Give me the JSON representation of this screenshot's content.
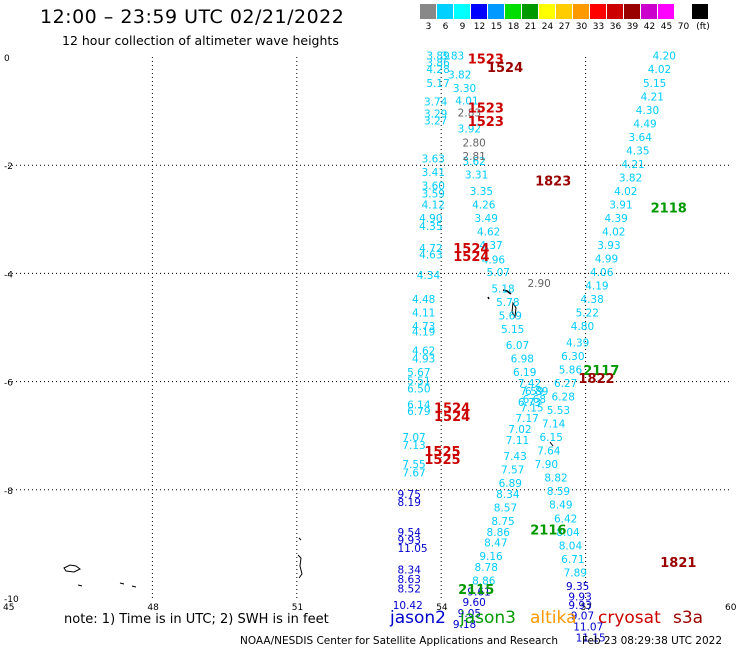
{
  "header": {
    "title": "12:00 – 23:59 UTC 02/21/2022",
    "subtitle": "12 hour collection of altimeter wave heights"
  },
  "legend": {
    "colors": [
      "#888888",
      "#00d0ff",
      "#00ffff",
      "#0000ff",
      "#0099ff",
      "#00dd00",
      "#009900",
      "#ffff00",
      "#ffcc00",
      "#ff9900",
      "#ff0000",
      "#cc0000",
      "#990000",
      "#cc00cc",
      "#ff00ff",
      "#ffffff",
      "#000000"
    ],
    "labels": [
      "3",
      "6",
      "9",
      "12",
      "15",
      "18",
      "21",
      "24",
      "27",
      "30",
      "33",
      "36",
      "39",
      "42",
      "45",
      "70",
      "(ft)"
    ]
  },
  "axes": {
    "y_ticks": [
      "0",
      "-2",
      "-4",
      "-6",
      "-8",
      "-10"
    ],
    "x_ticks": [
      "45",
      "48",
      "51",
      "54",
      "57",
      "60"
    ]
  },
  "footer": {
    "note": "note:  1) Time is in UTC;  2) SWH is in feet",
    "satellites": [
      {
        "name": "jason2",
        "color": "#0000cc"
      },
      {
        "name": "jason3",
        "color": "#009900"
      },
      {
        "name": "altika",
        "color": "#ff9900"
      },
      {
        "name": "cryosat",
        "color": "#cc0000"
      },
      {
        "name": "s3a",
        "color": "#990000"
      }
    ],
    "credit": "NOAA/NESDIS Center for Satellite Applications and Research",
    "timestamp": "Feb 23 08:29:38 UTC 2022"
  },
  "map_data": {
    "lon_range": [
      45,
      60
    ],
    "lat_range": [
      -10,
      0
    ],
    "time_labels": [
      {
        "text": "1523",
        "lon": 54.8,
        "lat": -0.05,
        "color": "#cc0000"
      },
      {
        "text": "1524",
        "lon": 55.2,
        "lat": -0.2,
        "color": "#990000"
      },
      {
        "text": "1523",
        "lon": 54.8,
        "lat": -0.95,
        "color": "#cc0000"
      },
      {
        "text": "1523",
        "lon": 54.8,
        "lat": -1.2,
        "color": "#cc0000"
      },
      {
        "text": "1823",
        "lon": 56.2,
        "lat": -2.3,
        "color": "#990000"
      },
      {
        "text": "2118",
        "lon": 58.6,
        "lat": -2.8,
        "color": "#009900"
      },
      {
        "text": "1524",
        "lon": 54.5,
        "lat": -3.55,
        "color": "#cc0000"
      },
      {
        "text": "1524",
        "lon": 54.5,
        "lat": -3.7,
        "color": "#cc0000"
      },
      {
        "text": "2117",
        "lon": 57.2,
        "lat": -5.8,
        "color": "#009900"
      },
      {
        "text": "1822",
        "lon": 57.1,
        "lat": -5.95,
        "color": "#990000"
      },
      {
        "text": "1524",
        "lon": 54.1,
        "lat": -6.5,
        "color": "#cc0000"
      },
      {
        "text": "1524",
        "lon": 54.1,
        "lat": -6.65,
        "color": "#cc0000"
      },
      {
        "text": "1525",
        "lon": 53.9,
        "lat": -7.3,
        "color": "#cc0000"
      },
      {
        "text": "1525",
        "lon": 53.9,
        "lat": -7.45,
        "color": "#cc0000"
      },
      {
        "text": "2116",
        "lon": 56.1,
        "lat": -8.75,
        "color": "#009900"
      },
      {
        "text": "1821",
        "lon": 58.8,
        "lat": -9.35,
        "color": "#990000"
      },
      {
        "text": "2115",
        "lon": 54.6,
        "lat": -9.85,
        "color": "#009900"
      }
    ],
    "tracks": [
      {
        "name": "track-a",
        "color": "#00ccff",
        "points": [
          {
            "lon": 53.9,
            "lat": -0.05,
            "v": "3.89"
          },
          {
            "lon": 53.9,
            "lat": -0.18,
            "v": "3.86"
          },
          {
            "lon": 53.9,
            "lat": -0.3,
            "v": "4.28"
          },
          {
            "lon": 53.9,
            "lat": -0.55,
            "v": "5.17"
          },
          {
            "lon": 53.85,
            "lat": -0.9,
            "v": "3.74"
          },
          {
            "lon": 53.85,
            "lat": -1.12,
            "v": "3.29"
          },
          {
            "lon": 53.85,
            "lat": -1.25,
            "v": "3.27"
          },
          {
            "lon": 53.8,
            "lat": -1.95,
            "v": "3.63"
          },
          {
            "lon": 53.8,
            "lat": -2.2,
            "v": "3.41"
          },
          {
            "lon": 53.8,
            "lat": -2.45,
            "v": "3.60"
          },
          {
            "lon": 53.8,
            "lat": -2.6,
            "v": "3.59"
          },
          {
            "lon": 53.8,
            "lat": -2.8,
            "v": "4.12"
          },
          {
            "lon": 53.75,
            "lat": -3.05,
            "v": "4.90"
          },
          {
            "lon": 53.75,
            "lat": -3.2,
            "v": "4.35"
          },
          {
            "lon": 53.75,
            "lat": -3.6,
            "v": "4.72"
          },
          {
            "lon": 53.75,
            "lat": -3.72,
            "v": "4.63"
          },
          {
            "lon": 53.7,
            "lat": -4.1,
            "v": "4.34"
          },
          {
            "lon": 53.6,
            "lat": -4.55,
            "v": "4.48"
          },
          {
            "lon": 53.6,
            "lat": -4.8,
            "v": "4.11"
          },
          {
            "lon": 53.6,
            "lat": -5.05,
            "v": "4.73"
          },
          {
            "lon": 53.6,
            "lat": -5.15,
            "v": "4.19"
          },
          {
            "lon": 53.6,
            "lat": -5.5,
            "v": "4.62"
          },
          {
            "lon": 53.6,
            "lat": -5.65,
            "v": "4.93"
          },
          {
            "lon": 53.5,
            "lat": -5.9,
            "v": "5.67"
          },
          {
            "lon": 53.5,
            "lat": -6.05,
            "v": "5.51"
          },
          {
            "lon": 53.5,
            "lat": -6.2,
            "v": "6.50"
          },
          {
            "lon": 53.5,
            "lat": -6.5,
            "v": "6.14"
          },
          {
            "lon": 53.5,
            "lat": -6.62,
            "v": "6.79"
          },
          {
            "lon": 53.4,
            "lat": -7.1,
            "v": "7.07"
          },
          {
            "lon": 53.4,
            "lat": -7.25,
            "v": "7.13"
          },
          {
            "lon": 53.4,
            "lat": -7.6,
            "v": "7.55"
          },
          {
            "lon": 53.4,
            "lat": -7.75,
            "v": "7.67"
          }
        ]
      },
      {
        "name": "track-a-south",
        "color": "#0000cc",
        "points": [
          {
            "lon": 53.3,
            "lat": -8.15,
            "v": "9.75"
          },
          {
            "lon": 53.3,
            "lat": -8.3,
            "v": "8.19"
          },
          {
            "lon": 53.3,
            "lat": -8.85,
            "v": "9.54"
          },
          {
            "lon": 53.3,
            "lat": -9.0,
            "v": "9.93"
          },
          {
            "lon": 53.3,
            "lat": -9.15,
            "v": "11.05"
          },
          {
            "lon": 53.3,
            "lat": -9.55,
            "v": "8.34"
          },
          {
            "lon": 53.3,
            "lat": -9.72,
            "v": "8.63"
          },
          {
            "lon": 53.3,
            "lat": -9.9,
            "v": "8.52"
          },
          {
            "lon": 53.2,
            "lat": -10.2,
            "v": "10.42"
          }
        ]
      },
      {
        "name": "track-b",
        "color": "#00ccff",
        "points": [
          {
            "lon": 54.2,
            "lat": -0.05,
            "v": "3.83"
          },
          {
            "lon": 54.35,
            "lat": -0.4,
            "v": "3.82"
          },
          {
            "lon": 54.45,
            "lat": -0.65,
            "v": "3.30"
          },
          {
            "lon": 54.5,
            "lat": -0.88,
            "v": "4.01"
          },
          {
            "lon": 54.55,
            "lat": -1.4,
            "v": "3.92"
          },
          {
            "lon": 54.65,
            "lat": -2.0,
            "v": "3.62"
          },
          {
            "lon": 54.7,
            "lat": -2.25,
            "v": "3.31"
          },
          {
            "lon": 54.8,
            "lat": -2.55,
            "v": "3.35"
          },
          {
            "lon": 54.85,
            "lat": -2.8,
            "v": "4.26"
          },
          {
            "lon": 54.9,
            "lat": -3.05,
            "v": "3.49"
          },
          {
            "lon": 54.95,
            "lat": -3.3,
            "v": "4.62"
          },
          {
            "lon": 55.0,
            "lat": -3.55,
            "v": "4.37"
          },
          {
            "lon": 55.05,
            "lat": -3.82,
            "v": "4.96"
          },
          {
            "lon": 55.15,
            "lat": -4.05,
            "v": "5.07"
          },
          {
            "lon": 55.25,
            "lat": -4.35,
            "v": "5.18"
          },
          {
            "lon": 55.35,
            "lat": -4.6,
            "v": "5.78"
          },
          {
            "lon": 55.4,
            "lat": -4.85,
            "v": "5.69"
          },
          {
            "lon": 55.45,
            "lat": -5.1,
            "v": "5.15"
          },
          {
            "lon": 55.55,
            "lat": -5.4,
            "v": "6.07"
          },
          {
            "lon": 55.65,
            "lat": -5.65,
            "v": "6.98"
          },
          {
            "lon": 55.7,
            "lat": -5.9,
            "v": "6.19"
          },
          {
            "lon": 55.8,
            "lat": -6.1,
            "v": "7.42"
          },
          {
            "lon": 55.85,
            "lat": -6.25,
            "v": "7.59"
          },
          {
            "lon": 55.8,
            "lat": -6.45,
            "v": "6.73"
          },
          {
            "lon": 55.75,
            "lat": -6.75,
            "v": "7.17"
          },
          {
            "lon": 55.6,
            "lat": -6.95,
            "v": "7.02"
          },
          {
            "lon": 55.55,
            "lat": -7.15,
            "v": "7.11"
          },
          {
            "lon": 55.5,
            "lat": -7.45,
            "v": "7.43"
          },
          {
            "lon": 55.45,
            "lat": -7.7,
            "v": "7.57"
          },
          {
            "lon": 55.4,
            "lat": -7.95,
            "v": "6.89"
          },
          {
            "lon": 55.35,
            "lat": -8.15,
            "v": "8.34"
          },
          {
            "lon": 55.3,
            "lat": -8.4,
            "v": "8.57"
          },
          {
            "lon": 55.25,
            "lat": -8.65,
            "v": "8.75"
          },
          {
            "lon": 55.15,
            "lat": -8.85,
            "v": "8.86"
          },
          {
            "lon": 55.1,
            "lat": -9.05,
            "v": "8.47"
          },
          {
            "lon": 55.0,
            "lat": -9.3,
            "v": "9.16"
          },
          {
            "lon": 54.9,
            "lat": -9.5,
            "v": "8.78"
          },
          {
            "lon": 54.85,
            "lat": -9.75,
            "v": "8.86"
          }
        ]
      },
      {
        "name": "track-b-south",
        "color": "#0000cc",
        "points": [
          {
            "lon": 54.75,
            "lat": -9.95,
            "v": "9.61"
          },
          {
            "lon": 54.65,
            "lat": -10.15,
            "v": "9.60"
          },
          {
            "lon": 54.55,
            "lat": -10.35,
            "v": "9.05"
          },
          {
            "lon": 54.45,
            "lat": -10.55,
            "v": "9.18"
          }
        ]
      },
      {
        "name": "track-grey",
        "color": "#666666",
        "points": [
          {
            "lon": 54.55,
            "lat": -1.1,
            "v": "2.83"
          },
          {
            "lon": 54.65,
            "lat": -1.65,
            "v": "2.80"
          },
          {
            "lon": 54.65,
            "lat": -1.9,
            "v": "2.81"
          },
          {
            "lon": 56.0,
            "lat": -4.25,
            "v": "2.90"
          }
        ]
      },
      {
        "name": "track-c",
        "color": "#00ccff",
        "points": [
          {
            "lon": 58.6,
            "lat": -0.05,
            "v": "4.20"
          },
          {
            "lon": 58.5,
            "lat": -0.3,
            "v": "4.02"
          },
          {
            "lon": 58.4,
            "lat": -0.55,
            "v": "5.15"
          },
          {
            "lon": 58.35,
            "lat": -0.8,
            "v": "4.21"
          },
          {
            "lon": 58.25,
            "lat": -1.05,
            "v": "4.30"
          },
          {
            "lon": 58.2,
            "lat": -1.3,
            "v": "4.49"
          },
          {
            "lon": 58.1,
            "lat": -1.55,
            "v": "3.64"
          },
          {
            "lon": 58.05,
            "lat": -1.8,
            "v": "4.35"
          },
          {
            "lon": 57.95,
            "lat": -2.05,
            "v": "4.21"
          },
          {
            "lon": 57.9,
            "lat": -2.3,
            "v": "3.82"
          },
          {
            "lon": 57.8,
            "lat": -2.55,
            "v": "4.02"
          },
          {
            "lon": 57.7,
            "lat": -2.8,
            "v": "3.91"
          },
          {
            "lon": 57.6,
            "lat": -3.05,
            "v": "4.39"
          },
          {
            "lon": 57.55,
            "lat": -3.3,
            "v": "4.02"
          },
          {
            "lon": 57.45,
            "lat": -3.55,
            "v": "3.93"
          },
          {
            "lon": 57.4,
            "lat": -3.8,
            "v": "4.99"
          },
          {
            "lon": 57.3,
            "lat": -4.05,
            "v": "4.06"
          },
          {
            "lon": 57.2,
            "lat": -4.3,
            "v": "4.19"
          },
          {
            "lon": 57.1,
            "lat": -4.55,
            "v": "4.38"
          },
          {
            "lon": 57.0,
            "lat": -4.8,
            "v": "5.22"
          },
          {
            "lon": 56.9,
            "lat": -5.05,
            "v": "4.80"
          },
          {
            "lon": 56.8,
            "lat": -5.35,
            "v": "4.39"
          },
          {
            "lon": 56.7,
            "lat": -5.6,
            "v": "6.30"
          },
          {
            "lon": 56.65,
            "lat": -5.85,
            "v": "5.86"
          },
          {
            "lon": 56.55,
            "lat": -6.1,
            "v": "6.27"
          },
          {
            "lon": 56.5,
            "lat": -6.35,
            "v": "6.28"
          },
          {
            "lon": 56.4,
            "lat": -6.6,
            "v": "5.53"
          },
          {
            "lon": 56.3,
            "lat": -6.85,
            "v": "7.14"
          },
          {
            "lon": 56.25,
            "lat": -7.1,
            "v": "6.15"
          },
          {
            "lon": 56.2,
            "lat": -7.35,
            "v": "7.64"
          },
          {
            "lon": 56.15,
            "lat": -7.6,
            "v": "7.90"
          },
          {
            "lon": 56.35,
            "lat": -7.85,
            "v": "8.82"
          },
          {
            "lon": 56.4,
            "lat": -8.1,
            "v": "8.59"
          },
          {
            "lon": 56.45,
            "lat": -8.35,
            "v": "8.49"
          },
          {
            "lon": 56.55,
            "lat": -8.6,
            "v": "6.42"
          },
          {
            "lon": 56.6,
            "lat": -8.85,
            "v": "8.04"
          },
          {
            "lon": 56.65,
            "lat": -9.1,
            "v": "8.04"
          },
          {
            "lon": 56.7,
            "lat": -9.35,
            "v": "6.71"
          },
          {
            "lon": 56.75,
            "lat": -9.6,
            "v": "7.89"
          }
        ]
      },
      {
        "name": "track-c-south",
        "color": "#0000cc",
        "points": [
          {
            "lon": 56.8,
            "lat": -9.85,
            "v": "9.35"
          },
          {
            "lon": 56.85,
            "lat": -10.05,
            "v": "9.93"
          },
          {
            "lon": 56.85,
            "lat": -10.2,
            "v": "9.93"
          },
          {
            "lon": 56.9,
            "lat": -10.4,
            "v": "9.07"
          },
          {
            "lon": 56.95,
            "lat": -10.6,
            "v": "11.07"
          },
          {
            "lon": 57.0,
            "lat": -10.8,
            "v": "11.15"
          }
        ]
      },
      {
        "name": "track-d",
        "color": "#00ccff",
        "points": [
          {
            "lon": 55.95,
            "lat": -6.25,
            "v": "6.89"
          },
          {
            "lon": 55.9,
            "lat": -6.4,
            "v": "6.68"
          },
          {
            "lon": 55.85,
            "lat": -6.55,
            "v": "7.15"
          }
        ]
      }
    ]
  }
}
